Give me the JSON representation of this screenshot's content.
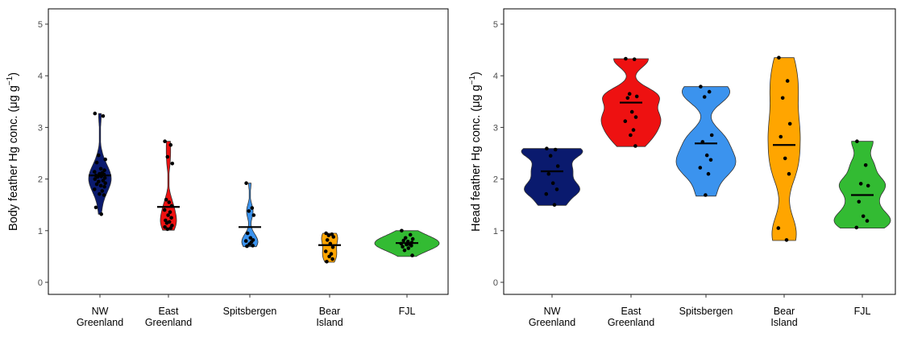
{
  "chart_data": [
    {
      "type": "violin",
      "ylabel_main": "Body feather Hg conc. (μg g",
      "ylabel_sup": "−1",
      "ylabel_close": ")",
      "ylim": [
        0,
        5
      ],
      "yticks": [
        "0",
        "1",
        "2",
        "3",
        "4",
        "5"
      ],
      "categories": [
        {
          "label": [
            "NW",
            "Greenland"
          ],
          "color": "#0a1a6e",
          "median": 2.07,
          "range": [
            1.32,
            3.27
          ],
          "points": [
            3.27,
            3.22,
            2.46,
            2.38,
            2.32,
            2.2,
            2.17,
            2.14,
            2.12,
            2.1,
            2.09,
            2.07,
            2.05,
            2.04,
            2.02,
            2.0,
            1.97,
            1.95,
            1.92,
            1.9,
            1.87,
            1.85,
            1.8,
            1.77,
            1.71,
            1.69,
            1.45,
            1.32
          ]
        },
        {
          "label": [
            "East",
            "Greenland"
          ],
          "color": "#ee1111",
          "median": 1.46,
          "range": [
            1.01,
            2.73
          ],
          "points": [
            2.73,
            2.66,
            2.43,
            2.3,
            1.6,
            1.55,
            1.48,
            1.4,
            1.36,
            1.3,
            1.25,
            1.2,
            1.17,
            1.15,
            1.1,
            1.07,
            1.05,
            1.03
          ]
        },
        {
          "label": [
            "Spitsbergen"
          ],
          "color": "#3b93ee",
          "median": 1.07,
          "range": [
            0.69,
            1.92
          ],
          "points": [
            1.92,
            1.44,
            1.38,
            1.3,
            0.95,
            0.86,
            0.82,
            0.8,
            0.78,
            0.74,
            0.71,
            0.7
          ]
        },
        {
          "label": [
            "Bear",
            "Island"
          ],
          "color": "#ffa500",
          "median": 0.72,
          "range": [
            0.39,
            0.95
          ],
          "points": [
            0.95,
            0.93,
            0.91,
            0.88,
            0.82,
            0.75,
            0.68,
            0.6,
            0.55,
            0.5,
            0.45,
            0.4
          ]
        },
        {
          "label": [
            "FJL"
          ],
          "color": "#33bb33",
          "median": 0.76,
          "range": [
            0.5,
            1.0
          ],
          "points": [
            1.0,
            0.92,
            0.86,
            0.84,
            0.81,
            0.79,
            0.77,
            0.75,
            0.74,
            0.73,
            0.71,
            0.69,
            0.66,
            0.62,
            0.52
          ]
        }
      ]
    },
    {
      "type": "violin",
      "ylabel_main": "Head feather Hg conc. (μg g",
      "ylabel_sup": "−1",
      "ylabel_close": ")",
      "ylim": [
        0,
        5
      ],
      "yticks": [
        "0",
        "1",
        "2",
        "3",
        "4",
        "5"
      ],
      "categories": [
        {
          "label": [
            "NW",
            "Greenland"
          ],
          "color": "#0a1a6e",
          "median": 2.15,
          "range": [
            1.49,
            2.59
          ],
          "points": [
            2.59,
            2.57,
            2.45,
            2.25,
            2.1,
            1.92,
            1.8,
            1.71,
            1.5
          ]
        },
        {
          "label": [
            "East",
            "Greenland"
          ],
          "color": "#ee1111",
          "median": 3.48,
          "range": [
            2.63,
            4.33
          ],
          "points": [
            4.33,
            4.32,
            3.65,
            3.6,
            3.57,
            3.3,
            3.2,
            3.12,
            2.95,
            2.85,
            2.64
          ]
        },
        {
          "label": [
            "Spitsbergen"
          ],
          "color": "#3b93ee",
          "median": 2.69,
          "range": [
            1.67,
            3.79
          ],
          "points": [
            3.79,
            3.69,
            3.59,
            2.85,
            2.72,
            2.46,
            2.37,
            2.22,
            2.1,
            1.69
          ]
        },
        {
          "label": [
            "Bear",
            "Island"
          ],
          "color": "#ffa500",
          "median": 2.66,
          "range": [
            0.81,
            4.35
          ],
          "points": [
            4.35,
            3.9,
            3.57,
            3.07,
            2.82,
            2.4,
            2.1,
            1.05,
            0.82
          ]
        },
        {
          "label": [
            "FJL"
          ],
          "color": "#33bb33",
          "median": 1.69,
          "range": [
            1.05,
            2.73
          ],
          "points": [
            2.73,
            2.27,
            1.91,
            1.87,
            1.56,
            1.28,
            1.19,
            1.06
          ]
        }
      ]
    }
  ]
}
